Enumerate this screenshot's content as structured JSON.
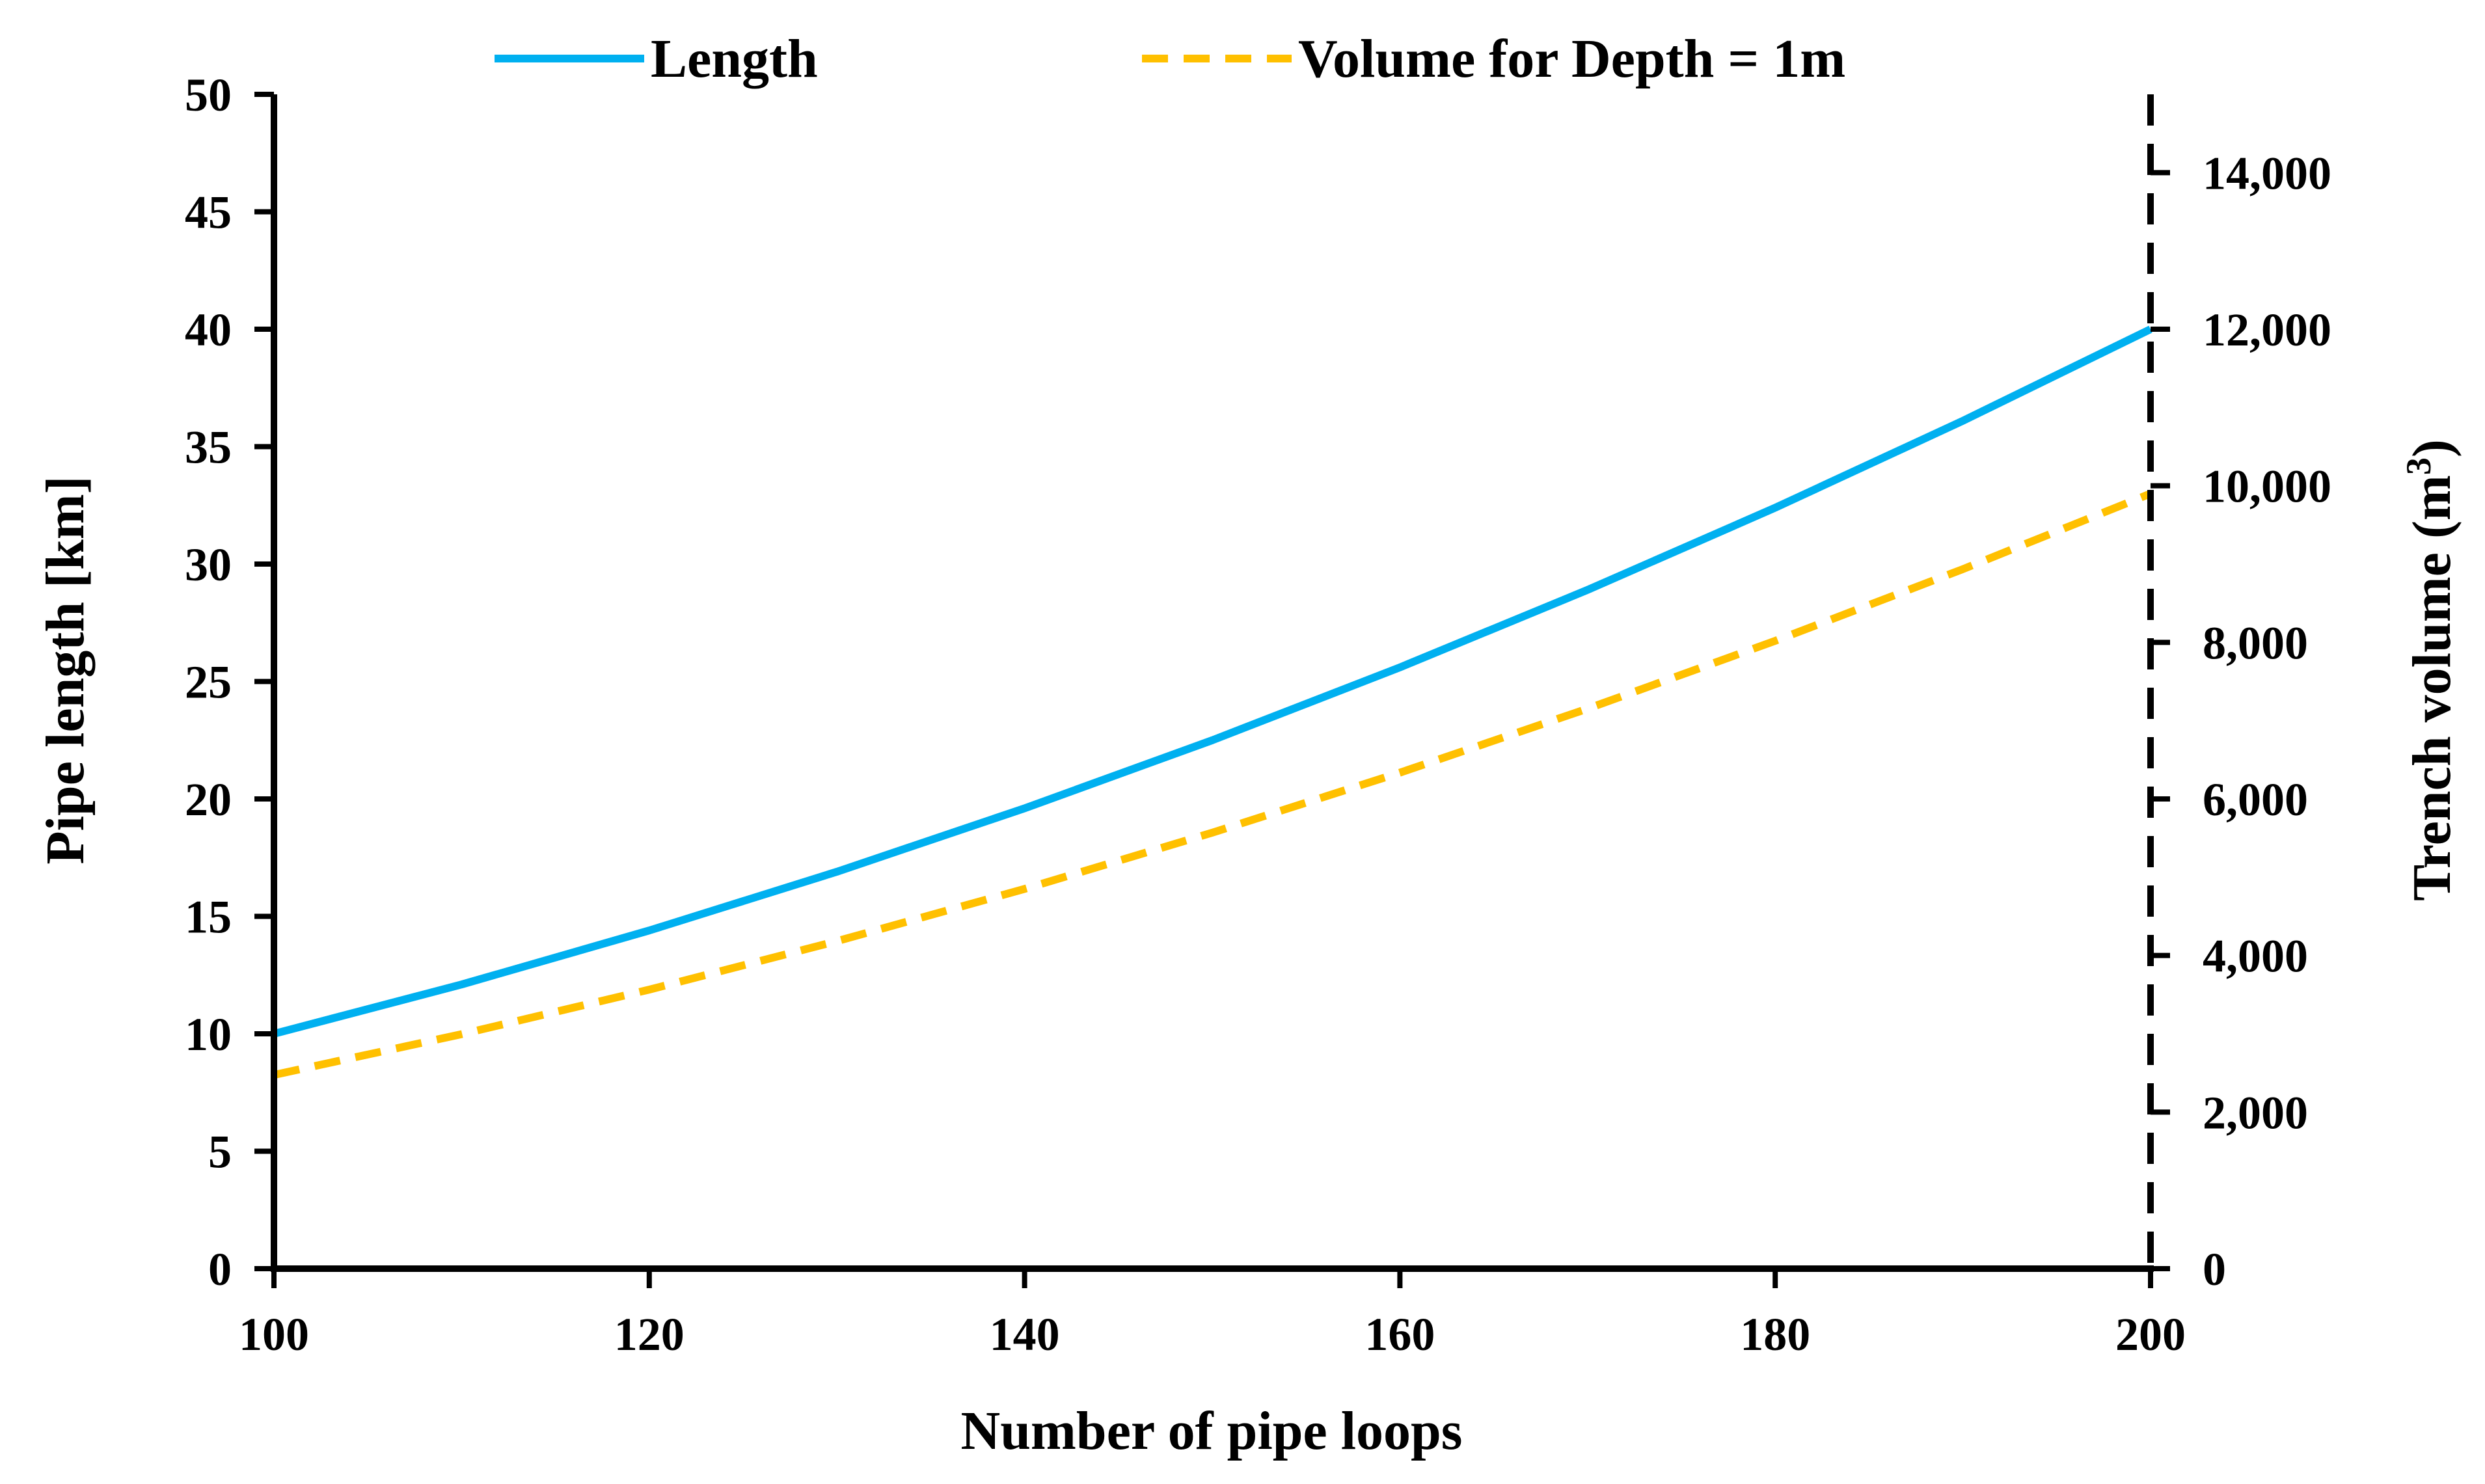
{
  "chart_data": {
    "type": "line",
    "title": "",
    "xlabel": "Number of pipe loops",
    "ylabel": "Pipe length [km]",
    "y2label_prefix": "Trench volume (m",
    "y2label_sup": "3",
    "y2label_suffix": ")",
    "xlim": [
      100,
      200
    ],
    "ylim": [
      0,
      50
    ],
    "y2lim": [
      0,
      15000
    ],
    "grid": false,
    "legend_position": "top",
    "x_ticks": [
      100,
      120,
      140,
      160,
      180,
      200
    ],
    "x_tick_labels": [
      "100",
      "120",
      "140",
      "160",
      "180",
      "200"
    ],
    "y_ticks": [
      0,
      5,
      10,
      15,
      20,
      25,
      30,
      35,
      40,
      45,
      50
    ],
    "y_tick_labels": [
      "0",
      "5",
      "10",
      "15",
      "20",
      "25",
      "30",
      "35",
      "40",
      "45",
      "50"
    ],
    "y2_ticks": [
      0,
      2000,
      4000,
      6000,
      8000,
      10000,
      12000,
      14000
    ],
    "y2_tick_labels": [
      "0",
      "2,000",
      "4,000",
      "6,000",
      "8,000",
      "10,000",
      "12,000",
      "14,000"
    ],
    "series": [
      {
        "name": "Length",
        "axis": "left",
        "color": "#00B0F0",
        "dash": "solid",
        "x": [
          100,
          110,
          120,
          130,
          140,
          150,
          160,
          170,
          180,
          190,
          200
        ],
        "values": [
          10.0,
          12.1,
          14.4,
          16.9,
          19.6,
          22.5,
          25.6,
          28.9,
          32.4,
          36.1,
          40.0
        ]
      },
      {
        "name": "Volume for Depth = 1m",
        "axis": "right",
        "color": "#FFC000",
        "dash": "dashed",
        "x": [
          100,
          110,
          120,
          130,
          140,
          150,
          160,
          170,
          180,
          190,
          200
        ],
        "values": [
          2475,
          2995,
          3564,
          4183,
          4851,
          5569,
          6336,
          7153,
          8019,
          8935,
          9900
        ]
      }
    ]
  }
}
